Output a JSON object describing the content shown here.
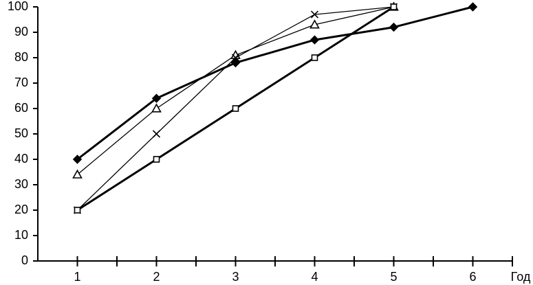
{
  "chart_data": {
    "type": "line",
    "x_label": "Год",
    "x": [
      1,
      2,
      3,
      4,
      5,
      6
    ],
    "series": [
      {
        "color": "#000000",
        "marker": "diamond",
        "line_width": 3,
        "values": [
          40,
          64,
          78,
          87,
          92,
          100
        ]
      },
      {
        "color": "#000000",
        "marker": "triangle",
        "line_width": 1.3,
        "values": [
          34,
          60,
          81,
          93,
          100,
          null
        ]
      },
      {
        "color": "#000000",
        "marker": "cross",
        "line_width": 1.3,
        "values": [
          20,
          50,
          80,
          97,
          100,
          null
        ]
      },
      {
        "color": "#000000",
        "marker": "square",
        "line_width": 3,
        "values": [
          20,
          40,
          60,
          80,
          100,
          null
        ]
      }
    ],
    "xlim": [
      0.5,
      6.5
    ],
    "xticks": [
      1,
      2,
      3,
      4,
      5,
      6
    ],
    "xminor_ticks": [
      1.5,
      2.5,
      3.5,
      4.5,
      5.5,
      6.5
    ],
    "ylim": [
      0,
      100
    ],
    "yticks": [
      0,
      10,
      20,
      30,
      40,
      50,
      60,
      70,
      80,
      90,
      100
    ],
    "grid": false
  }
}
